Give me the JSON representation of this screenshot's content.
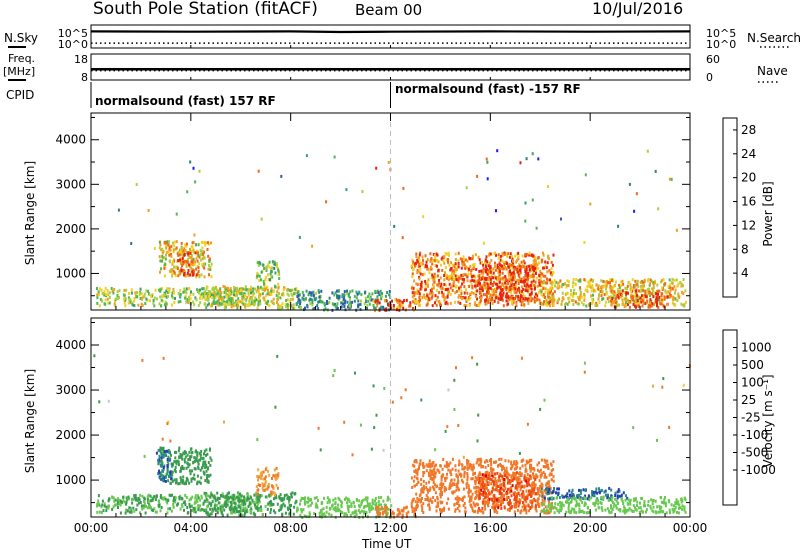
{
  "header": {
    "station": "South Pole Station (fitACF)",
    "beam": "Beam 00",
    "date": "10/Jul/2016"
  },
  "left_labels": {
    "nsky": "N.Sky",
    "freq": "Freq.",
    "freq_unit": "[MHz]",
    "cpid": "CPID"
  },
  "right_labels": {
    "nsearch": "N.Search",
    "nave": "Nave"
  },
  "cpid_segments": [
    {
      "label": "normalsound (fast) 157 RF"
    },
    {
      "label": "normalsound (fast) -157 RF"
    }
  ],
  "colorbars": {
    "power": {
      "label": "Power [dB]",
      "ticks": [
        "28",
        "24",
        "20",
        "16",
        "12",
        "8",
        "4"
      ]
    },
    "velocity": {
      "label": "Velocity [m s⁻¹]",
      "ticks": [
        "1000",
        "500",
        "100",
        "25",
        "-25",
        "-100",
        "-500",
        "-1000"
      ]
    }
  },
  "time_axis": {
    "label": "Time UT",
    "ticks": [
      "00:00",
      "04:00",
      "08:00",
      "12:00",
      "16:00",
      "20:00",
      "00:00"
    ]
  },
  "chart_data": [
    {
      "type": "line",
      "panel": "noise",
      "left_axis": {
        "ticks": [
          "10^5",
          "10^0"
        ]
      },
      "right_axis": {
        "ticks": [
          "10^5",
          "10^0"
        ]
      },
      "series": [
        {
          "name": "N.Sky",
          "x_hours": [
            0,
            4,
            8,
            10,
            12,
            16,
            20,
            24
          ],
          "y_log10": [
            4.2,
            4.1,
            4.2,
            4.0,
            4.1,
            4.2,
            4.1,
            4.2
          ]
        },
        {
          "name": "N.Search",
          "x_hours": [
            0,
            4,
            8,
            12,
            16,
            20,
            24
          ],
          "y_log10": [
            0.3,
            0.3,
            0.3,
            0.3,
            0.3,
            0.3,
            0.3
          ]
        }
      ]
    },
    {
      "type": "line",
      "panel": "frequency",
      "left_axis": {
        "ticks": [
          "18",
          "8"
        ],
        "ylim": [
          8,
          18
        ]
      },
      "right_axis": {
        "ticks": [
          "60",
          "0"
        ],
        "ylim": [
          0,
          60
        ]
      },
      "series": [
        {
          "name": "Freq",
          "x_hours": [
            0,
            24
          ],
          "y": [
            12,
            12
          ]
        },
        {
          "name": "Nave",
          "x_hours": [
            0,
            24
          ],
          "y": [
            20,
            20
          ]
        }
      ]
    },
    {
      "type": "heatmap",
      "panel": "power",
      "xlabel": "Time UT",
      "ylabel": "Slant Range [km]",
      "xlim": [
        0,
        24
      ],
      "ylim": [
        180,
        4600
      ],
      "yticks": [
        "1000",
        "2000",
        "3000",
        "4000"
      ],
      "zlim": [
        0,
        30
      ],
      "patches": [
        {
          "t": [
            0.2,
            6.8
          ],
          "r": [
            300,
            700
          ],
          "z": 16
        },
        {
          "t": [
            2.7,
            4.8
          ],
          "r": [
            950,
            1750
          ],
          "z": 20
        },
        {
          "t": [
            3.4,
            4.2
          ],
          "r": [
            1000,
            1500
          ],
          "z": 28
        },
        {
          "t": [
            4.5,
            8.2
          ],
          "r": [
            250,
            750
          ],
          "z": 18
        },
        {
          "t": [
            6.6,
            7.5
          ],
          "r": [
            700,
            1300
          ],
          "z": 14
        },
        {
          "t": [
            8.2,
            12.0
          ],
          "r": [
            200,
            650
          ],
          "z": 10
        },
        {
          "t": [
            11.2,
            13.0
          ],
          "r": [
            200,
            450
          ],
          "z": 26
        },
        {
          "t": [
            12.8,
            18.5
          ],
          "r": [
            300,
            1500
          ],
          "z": 24
        },
        {
          "t": [
            15.5,
            17.8
          ],
          "r": [
            400,
            1200
          ],
          "z": 28
        },
        {
          "t": [
            18.0,
            23.8
          ],
          "r": [
            300,
            900
          ],
          "z": 20
        },
        {
          "t": [
            20.8,
            23.2
          ],
          "r": [
            250,
            650
          ],
          "z": 26
        }
      ]
    },
    {
      "type": "heatmap",
      "panel": "velocity",
      "xlabel": "Time UT",
      "ylabel": "Slant Range [km]",
      "xlim": [
        0,
        24
      ],
      "ylim": [
        180,
        4600
      ],
      "yticks": [
        "1000",
        "2000",
        "3000",
        "4000"
      ],
      "zlim": [
        -1000,
        1000
      ],
      "patches": [
        {
          "t": [
            0.2,
            6.8
          ],
          "r": [
            300,
            700
          ],
          "z": 100
        },
        {
          "t": [
            2.7,
            4.8
          ],
          "r": [
            950,
            1750
          ],
          "z": 300
        },
        {
          "t": [
            2.6,
            3.2
          ],
          "r": [
            1000,
            1700
          ],
          "z": 1000
        },
        {
          "t": [
            4.5,
            8.2
          ],
          "r": [
            250,
            750
          ],
          "z": 150
        },
        {
          "t": [
            6.6,
            7.5
          ],
          "r": [
            700,
            1300
          ],
          "z": -100
        },
        {
          "t": [
            8.2,
            12.0
          ],
          "r": [
            200,
            650
          ],
          "z": 60
        },
        {
          "t": [
            11.2,
            13.0
          ],
          "r": [
            200,
            450
          ],
          "z": -300
        },
        {
          "t": [
            12.8,
            18.5
          ],
          "r": [
            300,
            1500
          ],
          "z": -250
        },
        {
          "t": [
            15.5,
            17.8
          ],
          "r": [
            400,
            1200
          ],
          "z": -700
        },
        {
          "t": [
            18.0,
            21.5
          ],
          "r": [
            600,
            850
          ],
          "z": 1000
        },
        {
          "t": [
            18.0,
            23.8
          ],
          "r": [
            300,
            650
          ],
          "z": 60
        }
      ]
    }
  ]
}
